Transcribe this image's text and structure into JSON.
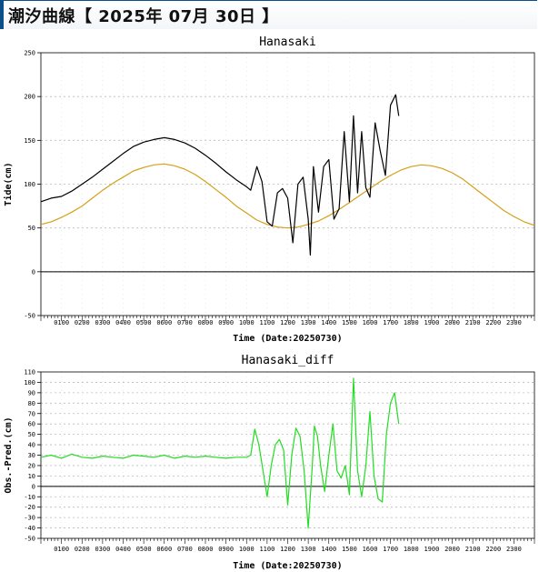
{
  "page": {
    "title": "潮汐曲線【 2025年 07月 30日 】"
  },
  "chart_data": [
    {
      "type": "line",
      "title": "Hanasaki",
      "xlabel": "Time (Date:20250730)",
      "ylabel": "Tide(cm)",
      "xlim": [
        0,
        24
      ],
      "ylim": [
        -50,
        250
      ],
      "yticks": [
        -50,
        0,
        50,
        100,
        150,
        200,
        250
      ],
      "xtick_labels": [
        "0100",
        "0200",
        "0300",
        "0400",
        "0500",
        "0600",
        "0700",
        "0800",
        "0900",
        "1000",
        "1100",
        "1200",
        "1300",
        "1400",
        "1500",
        "1600",
        "1700",
        "1800",
        "1900",
        "2000",
        "2100",
        "2200",
        "2300"
      ],
      "grid": true,
      "series": [
        {
          "role": "observed",
          "color": "#000000",
          "x": [
            0,
            0.5,
            1,
            1.5,
            2,
            2.5,
            3,
            3.5,
            4,
            4.5,
            5,
            5.5,
            6,
            6.5,
            7,
            7.5,
            8,
            8.5,
            9,
            9.5,
            10,
            10.2,
            10.5,
            10.75,
            11,
            11.25,
            11.5,
            11.75,
            12,
            12.25,
            12.5,
            12.75,
            13,
            13.1,
            13.25,
            13.5,
            13.75,
            14,
            14.25,
            14.5,
            14.75,
            15,
            15.2,
            15.4,
            15.6,
            15.8,
            16,
            16.25,
            16.5,
            16.75,
            17,
            17.25,
            17.4
          ],
          "y": [
            80,
            84,
            86,
            92,
            100,
            108,
            117,
            126,
            135,
            143,
            148,
            151,
            153,
            151,
            147,
            141,
            133,
            124,
            114,
            105,
            97,
            93,
            120,
            103,
            57,
            52,
            90,
            95,
            84,
            33,
            100,
            108,
            60,
            19,
            120,
            68,
            120,
            128,
            60,
            72,
            160,
            80,
            178,
            90,
            160,
            96,
            85,
            170,
            138,
            110,
            190,
            202,
            178
          ]
        },
        {
          "role": "predicted",
          "color": "#d4a017",
          "x": [
            0,
            0.5,
            1,
            1.5,
            2,
            2.5,
            3,
            3.5,
            4,
            4.5,
            5,
            5.5,
            6,
            6.5,
            7,
            7.5,
            8,
            8.5,
            9,
            9.5,
            10,
            10.5,
            11,
            11.5,
            12,
            12.5,
            13,
            13.5,
            14,
            14.5,
            15,
            15.5,
            16,
            16.5,
            17,
            17.5,
            18,
            18.5,
            19,
            19.5,
            20,
            20.5,
            21,
            21.5,
            22,
            22.5,
            23,
            23.5,
            24
          ],
          "y": [
            54,
            57,
            62,
            68,
            75,
            84,
            93,
            101,
            108,
            115,
            119,
            122,
            123,
            121,
            117,
            111,
            103,
            94,
            85,
            75,
            67,
            59,
            54,
            51,
            50,
            51,
            54,
            58,
            64,
            71,
            79,
            87,
            95,
            103,
            110,
            116,
            120,
            122,
            121,
            118,
            113,
            106,
            97,
            88,
            79,
            70,
            63,
            57,
            53
          ]
        }
      ]
    },
    {
      "type": "line",
      "title": "Hanasaki_diff",
      "xlabel": "Time (Date:20250730)",
      "ylabel": "Obs.-Pred.(cm)",
      "xlim": [
        0,
        24
      ],
      "ylim": [
        -50,
        110
      ],
      "yticks": [
        -50,
        -40,
        -30,
        -20,
        -10,
        0,
        10,
        20,
        30,
        40,
        50,
        60,
        70,
        80,
        90,
        100,
        110
      ],
      "xtick_labels": [
        "0100",
        "0200",
        "0300",
        "0400",
        "0500",
        "0600",
        "0700",
        "0800",
        "0900",
        "1000",
        "1100",
        "1200",
        "1300",
        "1400",
        "1500",
        "1600",
        "1700",
        "1800",
        "1900",
        "2000",
        "2100",
        "2200",
        "2300"
      ],
      "grid": true,
      "series": [
        {
          "role": "difference",
          "color": "#22dd22",
          "x": [
            0,
            0.5,
            1,
            1.5,
            2,
            2.5,
            3,
            3.5,
            4,
            4.5,
            5,
            5.5,
            6,
            6.5,
            7,
            7.5,
            8,
            8.5,
            9,
            9.5,
            10,
            10.2,
            10.4,
            10.6,
            10.8,
            11,
            11.2,
            11.4,
            11.6,
            11.8,
            12,
            12.2,
            12.4,
            12.6,
            12.8,
            13,
            13.2,
            13.3,
            13.45,
            13.6,
            13.8,
            14,
            14.2,
            14.4,
            14.6,
            14.8,
            15,
            15.2,
            15.4,
            15.6,
            15.8,
            16,
            16.2,
            16.4,
            16.6,
            16.8,
            17,
            17.2,
            17.4
          ],
          "y": [
            28,
            30,
            27,
            31,
            28,
            27,
            29,
            28,
            27,
            30,
            29,
            28,
            30,
            27,
            29,
            28,
            29,
            28,
            27,
            28,
            28,
            30,
            55,
            40,
            15,
            -10,
            20,
            40,
            45,
            35,
            -18,
            30,
            56,
            48,
            15,
            -40,
            20,
            58,
            48,
            20,
            -5,
            30,
            60,
            15,
            8,
            20,
            -8,
            104,
            15,
            -10,
            20,
            72,
            10,
            -12,
            -15,
            50,
            80,
            90,
            60
          ]
        }
      ]
    }
  ]
}
